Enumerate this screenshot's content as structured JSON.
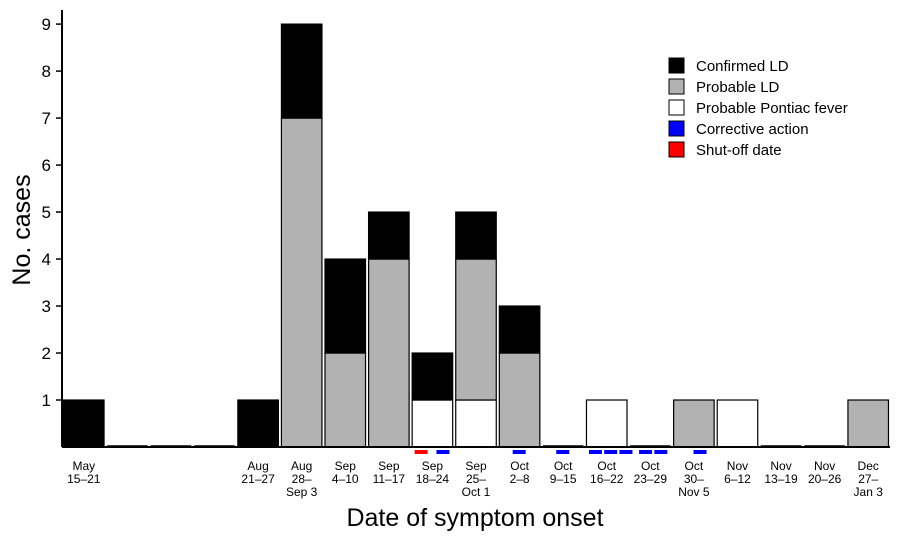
{
  "chart_data": {
    "type": "bar",
    "stacked": true,
    "xlabel": "Date of symptom onset",
    "ylabel": "No. cases",
    "ylim": [
      0,
      9.3
    ],
    "yticks": [
      1,
      2,
      3,
      4,
      5,
      6,
      7,
      8,
      9
    ],
    "categories": [
      [
        "May",
        "15–21"
      ],
      [],
      [],
      [],
      [
        "Aug",
        "21–27"
      ],
      [
        "Aug",
        "28–",
        "Sep 3"
      ],
      [
        "Sep",
        "4–10"
      ],
      [
        "Sep",
        "11–17"
      ],
      [
        "Sep",
        "18–24"
      ],
      [
        "Sep",
        "25–",
        "Oct 1"
      ],
      [
        "Oct",
        "2–8"
      ],
      [
        "Oct",
        "9–15"
      ],
      [
        "Oct",
        "16–22"
      ],
      [
        "Oct",
        "23–29"
      ],
      [
        "Oct",
        "30–",
        "Nov 5"
      ],
      [
        "Nov",
        "6–12"
      ],
      [
        "Nov",
        "13–19"
      ],
      [
        "Nov",
        "20–26"
      ],
      [
        "Dec",
        "27–",
        "Jan 3"
      ]
    ],
    "series": [
      {
        "name": "Probable Pontiac fever",
        "color": "#ffffff",
        "values": [
          0,
          0,
          0,
          0,
          0,
          0,
          0,
          0,
          1,
          1,
          0,
          0,
          1,
          0,
          0,
          1,
          0,
          0,
          0
        ]
      },
      {
        "name": "Probable LD",
        "color": "#b2b2b2",
        "values": [
          0,
          0,
          0,
          0,
          0,
          7,
          2,
          4,
          0,
          3,
          2,
          0,
          0,
          0,
          1,
          0,
          0,
          0,
          1
        ]
      },
      {
        "name": "Confirmed LD",
        "color": "#000000",
        "values": [
          1,
          0,
          0,
          0,
          1,
          2,
          2,
          1,
          1,
          1,
          1,
          0,
          0,
          0,
          0,
          0,
          0,
          0,
          0
        ]
      }
    ],
    "legend": {
      "placement": "top-right",
      "entries": [
        {
          "label": "Confirmed LD",
          "color": "#000000"
        },
        {
          "label": "Probable LD",
          "color": "#b2b2b2"
        },
        {
          "label": "Probable Pontiac fever",
          "color": "#ffffff"
        },
        {
          "label": "Corrective action",
          "color": "#0000ff"
        },
        {
          "label": "Shut-off date",
          "color": "#ff0000"
        }
      ]
    },
    "markers": [
      {
        "type": "Shut-off date",
        "color": "#ff0000",
        "category": 8,
        "pos": 0.0
      },
      {
        "type": "Corrective action",
        "color": "#0000ff",
        "category": 8,
        "pos": 0.5
      },
      {
        "type": "Corrective action",
        "color": "#0000ff",
        "category": 10,
        "pos": 0.25
      },
      {
        "type": "Corrective action",
        "color": "#0000ff",
        "category": 11,
        "pos": 0.25
      },
      {
        "type": "Corrective action",
        "color": "#0000ff",
        "category": 12,
        "pos": 0.0
      },
      {
        "type": "Corrective action",
        "color": "#0000ff",
        "category": 12,
        "pos": 0.35
      },
      {
        "type": "Corrective action",
        "color": "#0000ff",
        "category": 12,
        "pos": 0.7
      },
      {
        "type": "Corrective action",
        "color": "#0000ff",
        "category": 13,
        "pos": 0.15
      },
      {
        "type": "Corrective action",
        "color": "#0000ff",
        "category": 13,
        "pos": 0.5
      },
      {
        "type": "Corrective action",
        "color": "#0000ff",
        "category": 14,
        "pos": 0.4
      }
    ]
  }
}
